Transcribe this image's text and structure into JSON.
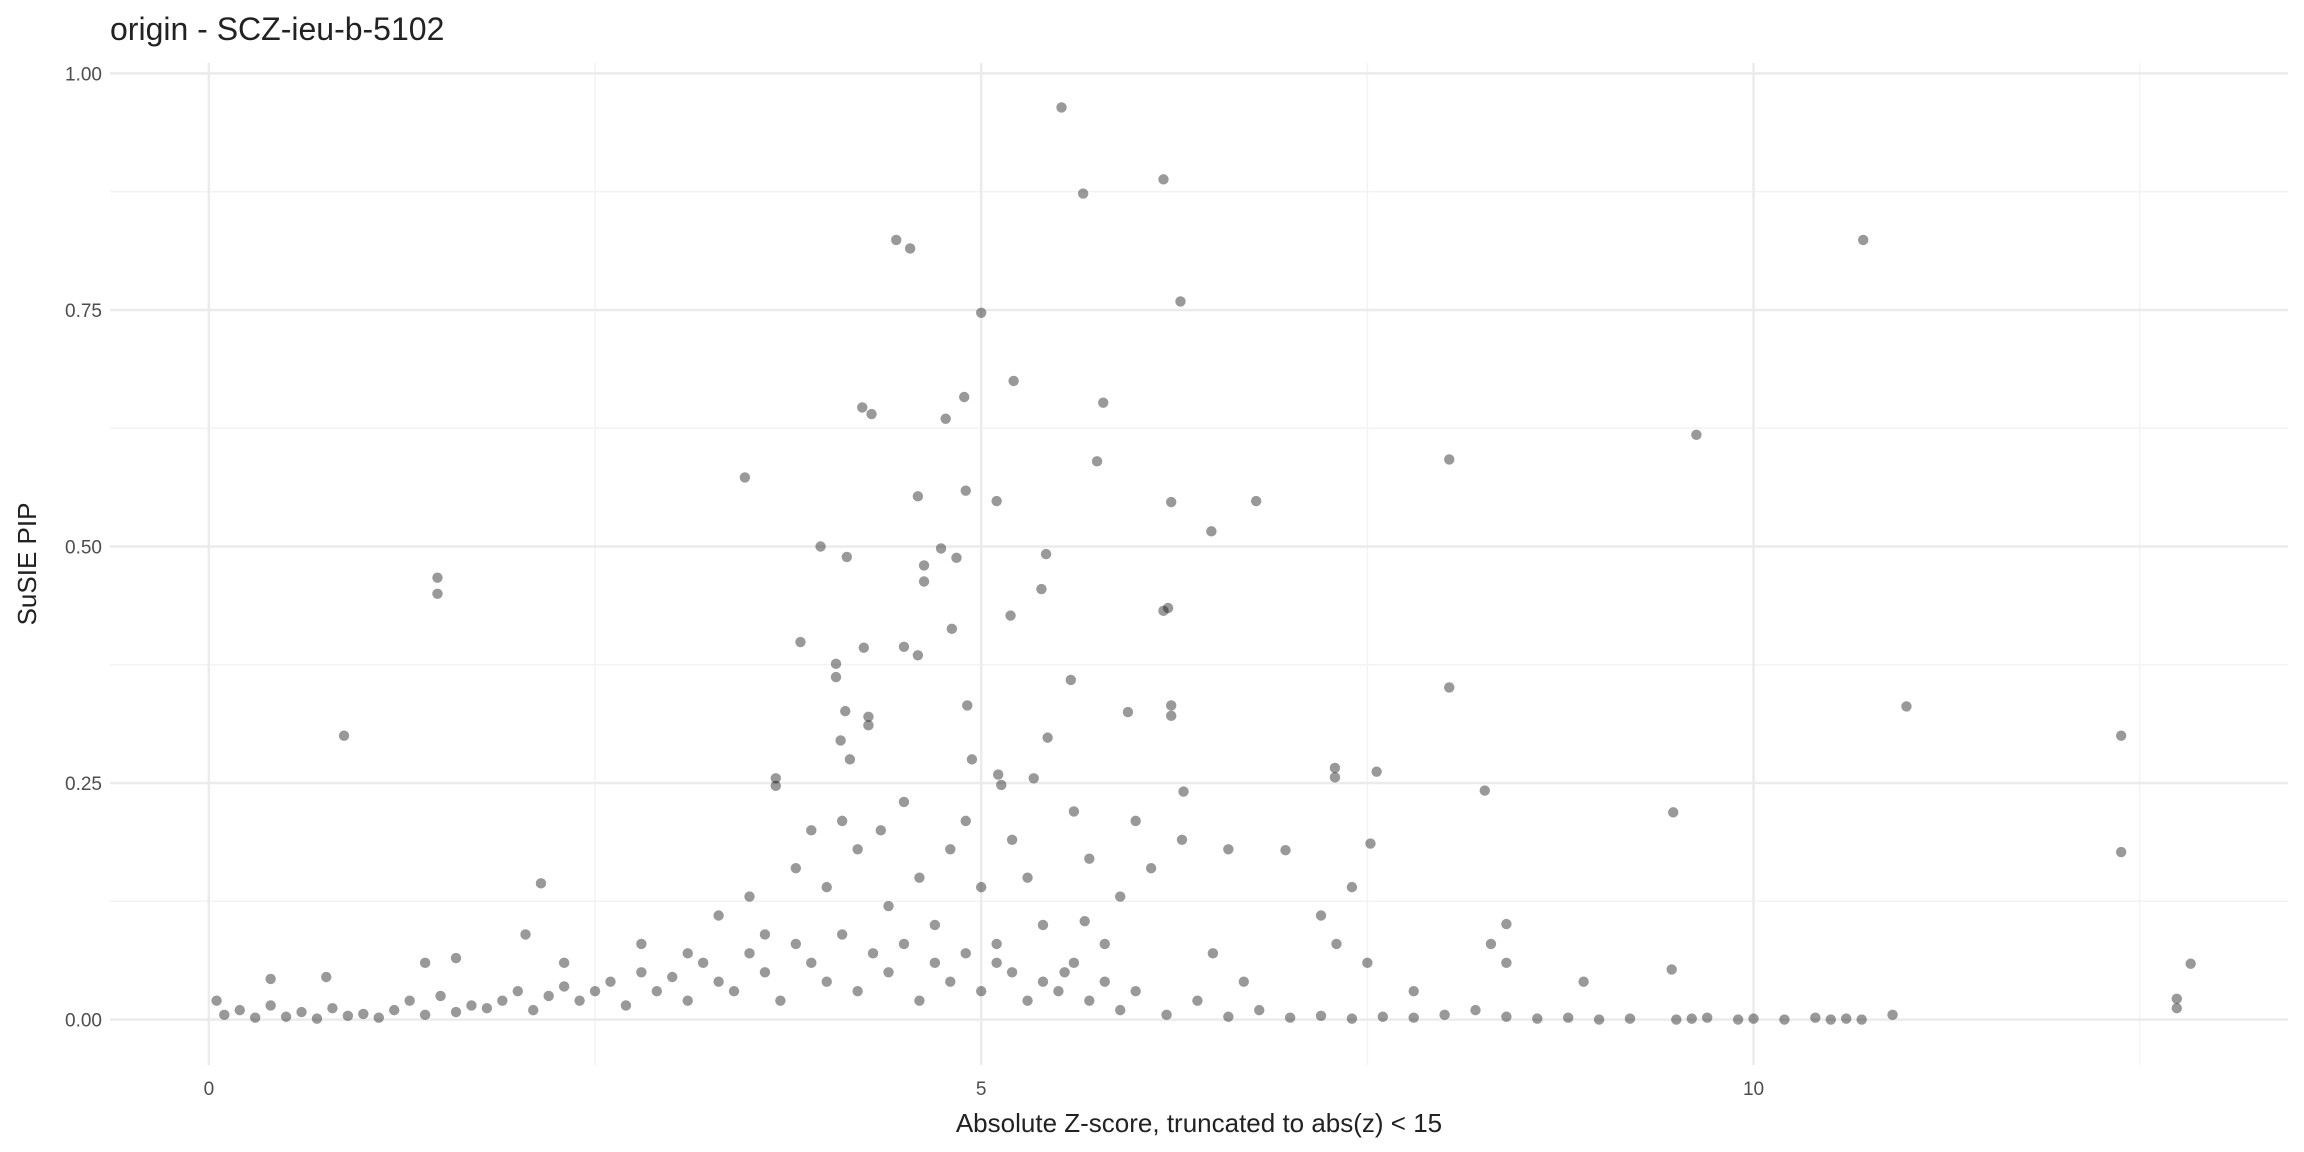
{
  "chart_data": {
    "type": "scatter",
    "title": "origin - SCZ-ieu-b-5102",
    "x_label": "Absolute Z-score, truncated to abs(z) < 15",
    "y_label": "SuSIE PIP",
    "color": "#000000",
    "opacity": 0.4,
    "grid": true,
    "xlim": [
      -0.64,
      13.46
    ],
    "ylim": [
      -0.048,
      1.011
    ],
    "xticks": [
      0,
      5,
      10
    ],
    "yticks": [
      {
        "value": 0,
        "label": "0.00"
      },
      {
        "value": 0.25,
        "label": "0.25"
      },
      {
        "value": 0.5,
        "label": "0.50"
      },
      {
        "value": 0.75,
        "label": "0.75"
      },
      {
        "value": 1,
        "label": "1.00"
      }
    ],
    "xminor": [
      2.5,
      7.5,
      12.5
    ],
    "yminor": [
      0.125,
      0.375,
      0.625,
      0.875
    ],
    "x": [
      5.52,
      6.18,
      5.66,
      4.45,
      4.54,
      10.71,
      6.29,
      5.0,
      5.21,
      4.89,
      5.79,
      4.23,
      4.29,
      4.77,
      9.63,
      3.47,
      5.75,
      8.03,
      4.9,
      4.59,
      5.1,
      6.23,
      6.78,
      6.49,
      1.48,
      1.48,
      3.96,
      4.13,
      4.74,
      4.84,
      4.63,
      4.63,
      5.42,
      5.39,
      6.21,
      6.18,
      5.19,
      4.81,
      3.83,
      4.24,
      4.5,
      4.59,
      4.06,
      4.06,
      5.58,
      8.03,
      10.99,
      4.91,
      6.23,
      6.23,
      5.95,
      4.12,
      4.27,
      4.27,
      0.875,
      12.38,
      5.43,
      4.09,
      4.15,
      4.94,
      7.29,
      7.29,
      7.56,
      5.11,
      5.13,
      3.67,
      3.67,
      5.34,
      8.26,
      6.31,
      9.48,
      12.38,
      6.97,
      7.52,
      2.15,
      8.4,
      9.47,
      12.83,
      12.74,
      12.74,
      5.67,
      5.54,
      0.4,
      0.76,
      1.4,
      1.6,
      2.05,
      2.3,
      2.8,
      3.1,
      3.3,
      3.5,
      3.6,
      3.8,
      3.9,
      4.0,
      4.1,
      4.2,
      4.35,
      4.4,
      4.5,
      4.6,
      4.7,
      4.8,
      4.9,
      5.0,
      5.1,
      5.2,
      5.3,
      5.4,
      5.6,
      5.7,
      5.8,
      5.9,
      6.0,
      6.1,
      6.3,
      6.5,
      6.6,
      6.7,
      7.2,
      7.3,
      7.4,
      7.5,
      7.8,
      8.3,
      8.4,
      8.9,
      10.9,
      0.05,
      0.1,
      0.2,
      0.3,
      0.4,
      0.5,
      0.6,
      0.7,
      0.8,
      0.9,
      1.0,
      1.1,
      1.2,
      1.3,
      1.4,
      1.5,
      1.6,
      1.7,
      1.8,
      1.9,
      2.0,
      2.1,
      2.2,
      2.3,
      2.4,
      2.5,
      2.6,
      2.7,
      2.8,
      2.9,
      3.0,
      3.1,
      3.2,
      3.3,
      3.4,
      3.5,
      3.6,
      3.7,
      3.8,
      3.9,
      4.0,
      4.1,
      4.2,
      4.3,
      4.4,
      4.5,
      4.6,
      4.7,
      4.8,
      4.9,
      5.0,
      5.1,
      5.2,
      5.3,
      5.4,
      5.5,
      5.6,
      5.7,
      5.8,
      5.9,
      6.0,
      6.2,
      6.4,
      6.6,
      6.8,
      7.0,
      7.2,
      7.4,
      7.6,
      7.8,
      8.0,
      8.2,
      8.4,
      8.6,
      8.8,
      9.0,
      9.2,
      9.5,
      9.6,
      9.7,
      9.9,
      10.0,
      10.2,
      10.4,
      10.5,
      10.6,
      10.7
    ],
    "values": [
      0.964,
      0.888,
      0.873,
      0.824,
      0.815,
      0.824,
      0.759,
      0.747,
      0.675,
      0.658,
      0.652,
      0.647,
      0.64,
      0.635,
      0.618,
      0.573,
      0.59,
      0.592,
      0.559,
      0.553,
      0.548,
      0.547,
      0.548,
      0.516,
      0.467,
      0.45,
      0.5,
      0.489,
      0.498,
      0.488,
      0.48,
      0.463,
      0.492,
      0.455,
      0.435,
      0.432,
      0.427,
      0.413,
      0.399,
      0.393,
      0.394,
      0.385,
      0.376,
      0.362,
      0.359,
      0.351,
      0.331,
      0.332,
      0.332,
      0.321,
      0.325,
      0.326,
      0.32,
      0.311,
      0.3,
      0.3,
      0.298,
      0.295,
      0.275,
      0.275,
      0.266,
      0.256,
      0.262,
      0.259,
      0.248,
      0.255,
      0.247,
      0.255,
      0.242,
      0.241,
      0.219,
      0.177,
      0.179,
      0.186,
      0.144,
      0.101,
      0.053,
      0.059,
      0.022,
      0.012,
      0.104,
      0.05,
      0.043,
      0.045,
      0.06,
      0.065,
      0.09,
      0.06,
      0.08,
      0.07,
      0.11,
      0.13,
      0.09,
      0.16,
      0.2,
      0.14,
      0.21,
      0.18,
      0.2,
      0.12,
      0.23,
      0.15,
      0.1,
      0.18,
      0.21,
      0.14,
      0.08,
      0.19,
      0.15,
      0.1,
      0.22,
      0.17,
      0.08,
      0.13,
      0.21,
      0.16,
      0.19,
      0.07,
      0.18,
      0.04,
      0.11,
      0.08,
      0.14,
      0.06,
      0.03,
      0.08,
      0.06,
      0.04,
      0.005,
      0.02,
      0.005,
      0.01,
      0.002,
      0.015,
      0.003,
      0.008,
      0.001,
      0.012,
      0.004,
      0.006,
      0.002,
      0.01,
      0.02,
      0.005,
      0.025,
      0.008,
      0.015,
      0.012,
      0.02,
      0.03,
      0.01,
      0.025,
      0.035,
      0.02,
      0.03,
      0.04,
      0.015,
      0.05,
      0.03,
      0.045,
      0.02,
      0.06,
      0.04,
      0.03,
      0.07,
      0.05,
      0.02,
      0.08,
      0.06,
      0.04,
      0.09,
      0.03,
      0.07,
      0.05,
      0.08,
      0.02,
      0.06,
      0.04,
      0.07,
      0.03,
      0.06,
      0.05,
      0.02,
      0.04,
      0.03,
      0.06,
      0.02,
      0.04,
      0.01,
      0.03,
      0.005,
      0.02,
      0.003,
      0.01,
      0.002,
      0.004,
      0.001,
      0.003,
      0.002,
      0.005,
      0.01,
      0.003,
      0.001,
      0.002,
      0.0,
      0.001,
      0.0,
      0.001,
      0.002,
      0.0,
      0.001,
      0.0,
      0.002,
      0.0,
      0.001,
      0.0
    ]
  }
}
